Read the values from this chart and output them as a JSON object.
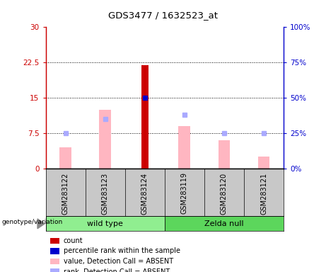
{
  "title": "GDS3477 / 1632523_at",
  "samples": [
    "GSM283122",
    "GSM283123",
    "GSM283124",
    "GSM283119",
    "GSM283120",
    "GSM283121"
  ],
  "ylim_left": [
    0,
    30
  ],
  "ylim_right": [
    0,
    100
  ],
  "yticks_left": [
    0,
    7.5,
    15,
    22.5,
    30
  ],
  "yticks_right": [
    0,
    25,
    50,
    75,
    100
  ],
  "ytick_labels_left": [
    "0",
    "7.5",
    "15",
    "22.5",
    "30"
  ],
  "ytick_labels_right": [
    "0%",
    "25%",
    "50%",
    "75%",
    "100%"
  ],
  "value_absent_bars": [
    4.5,
    12.5,
    0,
    9.0,
    6.0,
    2.5
  ],
  "rank_absent_markers": [
    7.5,
    10.5,
    0,
    11.5,
    7.5,
    7.5
  ],
  "count_bars": [
    0,
    0,
    22.0,
    0,
    0,
    0
  ],
  "percentile_markers_right": [
    0,
    0,
    50.0,
    0,
    0,
    0
  ],
  "count_color": "#CC0000",
  "percentile_color": "#0000CC",
  "value_absent_color": "#FFB6C1",
  "rank_absent_color": "#AAAAFF",
  "axis_bg": "#C8C8C8",
  "plot_bg": "#FFFFFF",
  "left_axis_color": "#CC0000",
  "right_axis_color": "#0000CC",
  "wild_type_color": "#90EE90",
  "zelda_null_color": "#5CD65C",
  "legend_items": [
    {
      "label": "count",
      "color": "#CC0000"
    },
    {
      "label": "percentile rank within the sample",
      "color": "#0000CC"
    },
    {
      "label": "value, Detection Call = ABSENT",
      "color": "#FFB6C1"
    },
    {
      "label": "rank, Detection Call = ABSENT",
      "color": "#AAAAFF"
    }
  ]
}
